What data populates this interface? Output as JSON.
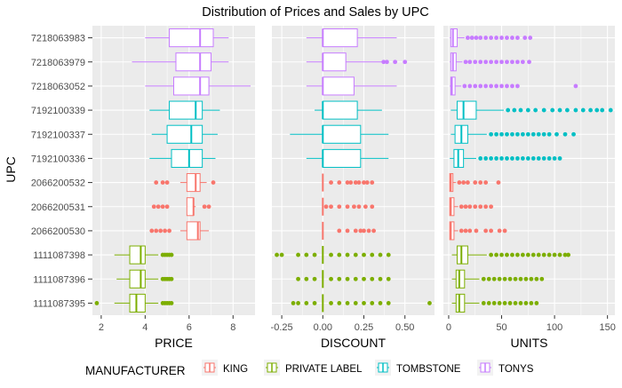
{
  "chart_data": {
    "type": "boxplot",
    "title": "Distribution of Prices and Sales by UPC",
    "ylabel": "UPC",
    "legend": {
      "title": "MANUFACTURER",
      "position": "bottom",
      "entries": [
        {
          "name": "KING",
          "color": "#F8766D"
        },
        {
          "name": "PRIVATE LABEL",
          "color": "#7CAE00"
        },
        {
          "name": "TOMBSTONE",
          "color": "#00BFC4"
        },
        {
          "name": "TONYS",
          "color": "#C77CFF"
        }
      ]
    },
    "categories": [
      "7218063983",
      "7218063979",
      "7218063052",
      "7192100339",
      "7192100337",
      "7192100336",
      "2066200532",
      "2066200531",
      "2066200530",
      "1111087398",
      "1111087396",
      "1111087395"
    ],
    "manufacturers": [
      "TONYS",
      "TONYS",
      "TONYS",
      "TOMBSTONE",
      "TOMBSTONE",
      "TOMBSTONE",
      "KING",
      "KING",
      "KING",
      "PRIVATE LABEL",
      "PRIVATE LABEL",
      "PRIVATE LABEL"
    ],
    "panels": [
      {
        "xlabel": "PRICE",
        "xlim": [
          1.6,
          9.0
        ],
        "ticks": [
          2,
          4,
          6,
          8
        ],
        "tick_labels": [
          "2",
          "4",
          "6",
          "8"
        ],
        "boxes": [
          {
            "min": 4.0,
            "q1": 5.1,
            "median": 6.5,
            "q3": 7.1,
            "max": 7.8,
            "outliers": []
          },
          {
            "min": 3.4,
            "q1": 5.4,
            "median": 6.5,
            "q3": 7.0,
            "max": 7.8,
            "outliers": []
          },
          {
            "min": 4.0,
            "q1": 5.3,
            "median": 6.5,
            "q3": 6.9,
            "max": 8.8,
            "outliers": []
          },
          {
            "min": 4.2,
            "q1": 5.1,
            "median": 6.3,
            "q3": 6.6,
            "max": 7.4,
            "outliers": []
          },
          {
            "min": 4.3,
            "q1": 5.0,
            "median": 6.1,
            "q3": 6.6,
            "max": 7.3,
            "outliers": []
          },
          {
            "min": 4.2,
            "q1": 5.2,
            "median": 6.0,
            "q3": 6.6,
            "max": 7.2,
            "outliers": []
          },
          {
            "min": 5.6,
            "q1": 5.9,
            "median": 6.3,
            "q3": 6.5,
            "max": 6.8,
            "outliers": [
              4.5,
              4.8,
              5.0,
              7.1
            ]
          },
          {
            "min": 5.9,
            "q1": 5.9,
            "median": 6.2,
            "q3": 6.2,
            "max": 6.3,
            "outliers": [
              4.4,
              4.6,
              4.8,
              5.0,
              6.7,
              6.9
            ]
          },
          {
            "min": 5.6,
            "q1": 5.9,
            "median": 6.4,
            "q3": 6.5,
            "max": 6.9,
            "outliers": [
              4.3,
              4.5,
              4.7,
              4.9,
              5.1
            ]
          },
          {
            "min": 2.6,
            "q1": 3.3,
            "median": 3.8,
            "q3": 4.0,
            "max": 4.6,
            "outliers": [
              4.8,
              4.9,
              5.0,
              5.1,
              5.2
            ]
          },
          {
            "min": 2.7,
            "q1": 3.3,
            "median": 3.8,
            "q3": 4.0,
            "max": 4.6,
            "outliers": [
              4.8,
              4.9,
              5.0,
              5.1,
              5.2
            ]
          },
          {
            "min": 2.6,
            "q1": 3.3,
            "median": 3.6,
            "q3": 4.0,
            "max": 4.6,
            "outliers": [
              1.8,
              4.8,
              4.9,
              5.0,
              5.1,
              5.2
            ]
          }
        ]
      },
      {
        "xlabel": "DISCOUNT",
        "xlim": [
          -0.31,
          0.68
        ],
        "ticks": [
          -0.25,
          0,
          0.25,
          0.5
        ],
        "tick_labels": [
          "-0.25",
          "0.00",
          "0.25",
          "0.50"
        ],
        "boxes": [
          {
            "min": -0.1,
            "q1": 0.0,
            "median": 0.0,
            "q3": 0.21,
            "max": 0.45,
            "outliers": []
          },
          {
            "min": -0.1,
            "q1": 0.0,
            "median": 0.0,
            "q3": 0.14,
            "max": 0.36,
            "outliers": [
              0.37,
              0.39,
              0.44,
              0.5
            ]
          },
          {
            "min": -0.1,
            "q1": 0.0,
            "median": 0.0,
            "q3": 0.19,
            "max": 0.45,
            "outliers": []
          },
          {
            "min": -0.05,
            "q1": 0.0,
            "median": 0.0,
            "q3": 0.21,
            "max": 0.36,
            "outliers": []
          },
          {
            "min": -0.2,
            "q1": 0.0,
            "median": 0.0,
            "q3": 0.23,
            "max": 0.4,
            "outliers": []
          },
          {
            "min": -0.1,
            "q1": 0.0,
            "median": 0.0,
            "q3": 0.23,
            "max": 0.4,
            "outliers": []
          },
          {
            "min": 0.0,
            "q1": 0.0,
            "median": 0.0,
            "q3": 0.0,
            "max": 0.0,
            "outliers": [
              0.05,
              0.1,
              0.15,
              0.17,
              0.2,
              0.22,
              0.25,
              0.27,
              0.3
            ]
          },
          {
            "min": 0.0,
            "q1": 0.0,
            "median": 0.0,
            "q3": 0.0,
            "max": 0.0,
            "outliers": [
              0.02,
              0.05,
              0.1,
              0.15,
              0.19,
              0.22,
              0.26,
              0.3
            ]
          },
          {
            "min": 0.0,
            "q1": 0.0,
            "median": 0.0,
            "q3": 0.0,
            "max": 0.0,
            "outliers": [
              0.1,
              0.15,
              0.2,
              0.23,
              0.25,
              0.28,
              0.31
            ]
          },
          {
            "min": 0.0,
            "q1": 0.0,
            "median": 0.0,
            "q3": 0.0,
            "max": 0.0,
            "outliers": [
              -0.28,
              -0.25,
              -0.15,
              -0.1,
              -0.05,
              0.05,
              0.1,
              0.15,
              0.2,
              0.25,
              0.3,
              0.35,
              0.4
            ]
          },
          {
            "min": 0.0,
            "q1": 0.0,
            "median": 0.0,
            "q3": 0.0,
            "max": 0.0,
            "outliers": [
              -0.15,
              -0.1,
              -0.05,
              0.05,
              0.1,
              0.15,
              0.2,
              0.25,
              0.3,
              0.35,
              0.4
            ]
          },
          {
            "min": 0.0,
            "q1": 0.0,
            "median": 0.0,
            "q3": 0.0,
            "max": 0.0,
            "outliers": [
              -0.18,
              -0.15,
              -0.1,
              -0.05,
              0.05,
              0.1,
              0.15,
              0.2,
              0.25,
              0.3,
              0.35,
              0.4,
              0.65
            ]
          }
        ]
      },
      {
        "xlabel": "UNITS",
        "xlim": [
          -5,
          157
        ],
        "ticks": [
          0,
          50,
          100,
          150
        ],
        "tick_labels": [
          "0",
          "50",
          "100",
          "150"
        ],
        "boxes": [
          {
            "min": 1,
            "q1": 2,
            "median": 4,
            "q3": 8,
            "max": 15,
            "outliers": [
              18,
              22,
              26,
              30,
              35,
              40,
              45,
              50,
              55,
              60,
              65,
              72,
              77
            ]
          },
          {
            "min": 1,
            "q1": 2,
            "median": 4,
            "q3": 7,
            "max": 13,
            "outliers": [
              16,
              20,
              25,
              30,
              35,
              40,
              45,
              50,
              55,
              60,
              65,
              70,
              76
            ]
          },
          {
            "min": 1,
            "q1": 2,
            "median": 3,
            "q3": 6,
            "max": 12,
            "outliers": [
              15,
              20,
              25,
              30,
              35,
              40,
              45,
              50,
              55,
              60,
              65,
              120
            ]
          },
          {
            "min": 2,
            "q1": 8,
            "median": 14,
            "q3": 26,
            "max": 52,
            "outliers": [
              56,
              62,
              68,
              75,
              82,
              90,
              98,
              105,
              112,
              120,
              127,
              134,
              140,
              145,
              153
            ]
          },
          {
            "min": 2,
            "q1": 6,
            "median": 12,
            "q3": 18,
            "max": 36,
            "outliers": [
              40,
              45,
              50,
              55,
              60,
              65,
              70,
              75,
              80,
              85,
              90,
              95,
              102,
              110,
              118
            ]
          },
          {
            "min": 1,
            "q1": 5,
            "median": 9,
            "q3": 14,
            "max": 26,
            "outliers": [
              30,
              35,
              40,
              45,
              50,
              55,
              60,
              65,
              70,
              75,
              80,
              85,
              90,
              95,
              100,
              105
            ]
          },
          {
            "min": 1,
            "q1": 1,
            "median": 2,
            "q3": 4,
            "max": 7,
            "outliers": [
              10,
              14,
              18,
              25,
              30,
              35,
              47
            ]
          },
          {
            "min": 1,
            "q1": 1,
            "median": 2,
            "q3": 5,
            "max": 9,
            "outliers": [
              12,
              16,
              20,
              25,
              30,
              35,
              40
            ]
          },
          {
            "min": 1,
            "q1": 1,
            "median": 2,
            "q3": 5,
            "max": 9,
            "outliers": [
              12,
              16,
              20,
              26,
              35,
              40,
              48,
              53
            ]
          },
          {
            "min": 3,
            "q1": 8,
            "median": 12,
            "q3": 18,
            "max": 36,
            "outliers": [
              40,
              45,
              50,
              55,
              60,
              65,
              70,
              75,
              80,
              85,
              90,
              95,
              100,
              105,
              110,
              113
            ]
          },
          {
            "min": 3,
            "q1": 7,
            "median": 10,
            "q3": 15,
            "max": 29,
            "outliers": [
              33,
              38,
              43,
              48,
              53,
              58,
              63,
              68,
              73,
              78,
              83,
              88
            ]
          },
          {
            "min": 3,
            "q1": 7,
            "median": 10,
            "q3": 15,
            "max": 29,
            "outliers": [
              33,
              38,
              43,
              48,
              53,
              58,
              63,
              68,
              73,
              78,
              83
            ]
          }
        ]
      }
    ]
  }
}
